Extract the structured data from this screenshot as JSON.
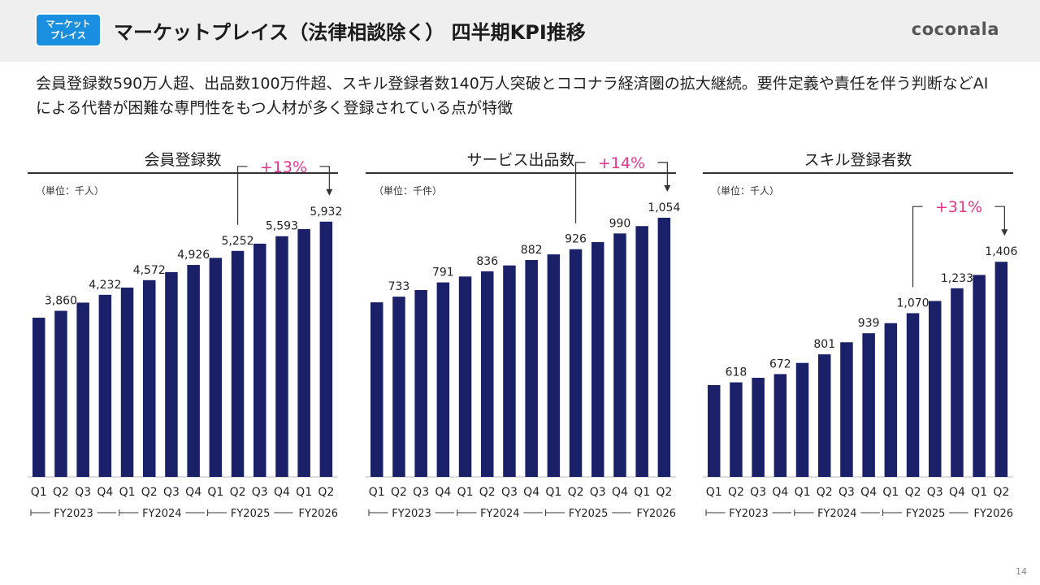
{
  "header": {
    "badge_line1": "マーケット",
    "badge_line2": "プレイス",
    "title": "マーケットプレイス（法律相談除く） 四半期KPI推移",
    "logo": "coconala"
  },
  "lead_text": "会員登録数590万人超、出品数100万件超、スキル登録者数140万人突破とココナラ経済圏の拡大継続。要件定義や責任を伴う判断などAIによる代替が困難な専門性をもつ人材が多く登録されている点が特徴",
  "page_number": "14",
  "colors": {
    "bar": "#1a2168",
    "growth": "#e8348c",
    "axis": "#555555",
    "badge": "#1a8fe0"
  },
  "chart_data": [
    {
      "type": "bar",
      "title": "会員登録数",
      "unit_note": "（単位：千人）",
      "categories": [
        "Q1",
        "Q2",
        "Q3",
        "Q4",
        "Q1",
        "Q2",
        "Q3",
        "Q4",
        "Q1",
        "Q2",
        "Q3",
        "Q4",
        "Q1",
        "Q2"
      ],
      "fiscal_years": [
        "FY2023",
        "FY2024",
        "FY2025",
        "FY2026"
      ],
      "values": [
        3700,
        3860,
        4050,
        4232,
        4400,
        4572,
        4760,
        4926,
        5090,
        5252,
        5420,
        5593,
        5760,
        5932
      ],
      "data_labels": [
        "",
        "3,860",
        "",
        "4,232",
        "",
        "4,572",
        "",
        "4,926",
        "",
        "5,252",
        "",
        "5,593",
        "",
        "5,932"
      ],
      "ylim": [
        0,
        6400
      ],
      "growth": {
        "label": "+13%",
        "from_index": 9,
        "to_index": 13
      }
    },
    {
      "type": "bar",
      "title": "サービス出品数",
      "unit_note": "（単位：千件）",
      "categories": [
        "Q1",
        "Q2",
        "Q3",
        "Q4",
        "Q1",
        "Q2",
        "Q3",
        "Q4",
        "Q1",
        "Q2",
        "Q3",
        "Q4",
        "Q1",
        "Q2"
      ],
      "fiscal_years": [
        "FY2023",
        "FY2024",
        "FY2025",
        "FY2026"
      ],
      "values": [
        710,
        733,
        760,
        791,
        815,
        836,
        860,
        882,
        905,
        926,
        955,
        990,
        1020,
        1054
      ],
      "data_labels": [
        "",
        "733",
        "",
        "791",
        "",
        "836",
        "",
        "882",
        "",
        "926",
        "",
        "990",
        "",
        "1,054"
      ],
      "ylim": [
        0,
        1120
      ],
      "growth": {
        "label": "+14%",
        "from_index": 9,
        "to_index": 13
      }
    },
    {
      "type": "bar",
      "title": "スキル登録者数",
      "unit_note": "（単位：千人）",
      "categories": [
        "Q1",
        "Q2",
        "Q3",
        "Q4",
        "Q1",
        "Q2",
        "Q3",
        "Q4",
        "Q1",
        "Q2",
        "Q3",
        "Q4",
        "Q1",
        "Q2"
      ],
      "fiscal_years": [
        "FY2023",
        "FY2024",
        "FY2025",
        "FY2026"
      ],
      "values": [
        600,
        618,
        648,
        672,
        745,
        801,
        880,
        939,
        1005,
        1070,
        1150,
        1233,
        1320,
        1406
      ],
      "data_labels": [
        "",
        "618",
        "",
        "672",
        "",
        "801",
        "",
        "939",
        "",
        "1,070",
        "",
        "1,233",
        "",
        "1,406"
      ],
      "ylim": [
        0,
        1800
      ],
      "growth": {
        "label": "+31%",
        "from_index": 9,
        "to_index": 13
      }
    }
  ]
}
